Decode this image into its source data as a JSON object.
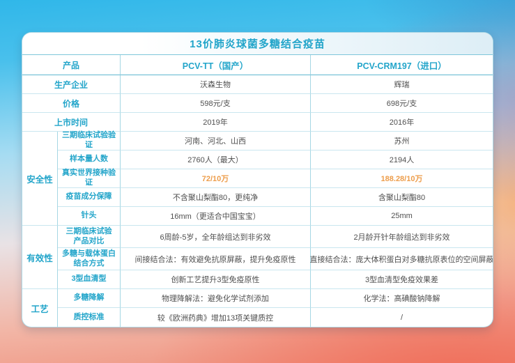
{
  "title": "13价肺炎球菌多糖结合疫苗",
  "colors": {
    "accent": "#23a5ca",
    "highlight": "#ed9d4b",
    "value_text": "#4f4f4f",
    "border_light": "#c9e6ef",
    "border_strong": "#5fb7cf",
    "bg_top": "#30b7e9",
    "bg_bottom_right": "#ef8d79"
  },
  "table": {
    "header": {
      "label": "产品",
      "domestic": "PCV-TT（国产）",
      "imported": "PCV-CRM197（进口）"
    },
    "categories": [
      {
        "name": "安全性"
      },
      {
        "name": "有效性"
      },
      {
        "name": "工艺"
      }
    ],
    "rows": [
      {
        "label": "生产企业",
        "a": "沃森生物",
        "b": "辉瑞"
      },
      {
        "label": "价格",
        "a": "598元/支",
        "b": "698元/支"
      },
      {
        "label": "上市时间",
        "a": "2019年",
        "b": "2016年"
      },
      {
        "label": "三期临床试验验证",
        "a": "河南、河北、山西",
        "b": "苏州"
      },
      {
        "label": "样本量人数",
        "a": "2760人（最大）",
        "b": "2194人"
      },
      {
        "label": "真实世界接种验证",
        "a": "72/10万",
        "b": "188.28/10万"
      },
      {
        "label": "疫苗成分保障",
        "a": "不含聚山梨酯80，更纯净",
        "b": "含聚山梨酯80"
      },
      {
        "label": "针头",
        "a": "16mm（更适合中国宝宝）",
        "b": "25mm"
      },
      {
        "label": "三期临床试验\n产品对比",
        "a": "6周龄-5岁，全年龄组达到非劣效",
        "b": "2月龄开针年龄组达到非劣效"
      },
      {
        "label": "多糖与载体蛋白\n结合方式",
        "a": "间接结合法：有效避免抗原屏蔽，提升免疫原性",
        "b": "直接结合法：庞大体积蛋白对多糖抗原表位的空间屏蔽"
      },
      {
        "label": "3型血清型",
        "a": "创新工艺提升3型免疫原性",
        "b": "3型血清型免疫效果差"
      },
      {
        "label": "多糖降解",
        "a": "物理降解法：避免化学试剂添加",
        "b": "化学法：高碘酸钠降解"
      },
      {
        "label": "质控标准",
        "a": "较《欧洲药典》增加13项关键质控",
        "b": "/"
      }
    ]
  }
}
